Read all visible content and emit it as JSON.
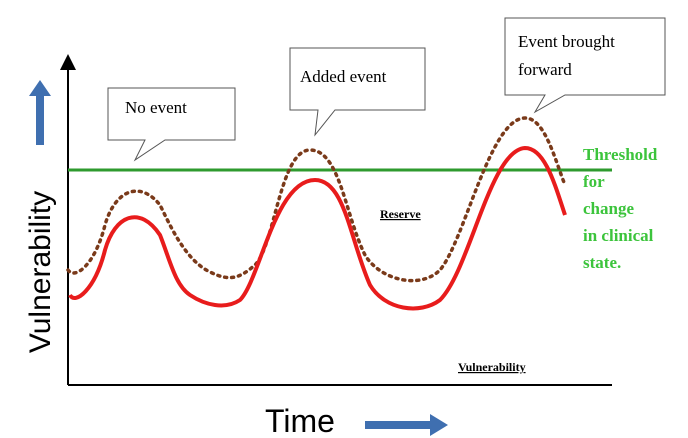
{
  "callouts": [
    {
      "label": "No event"
    },
    {
      "label": "Added event"
    },
    {
      "lines": [
        "Event brought",
        "forward"
      ]
    }
  ],
  "threshold": {
    "lines": [
      "Threshold",
      "for",
      "change",
      "in clinical",
      "state."
    ]
  },
  "reserve_label": "Reserve",
  "vulnerability_label": "Vulnerability",
  "y_axis_label": "Vulnerability",
  "x_axis_label": "Time"
}
